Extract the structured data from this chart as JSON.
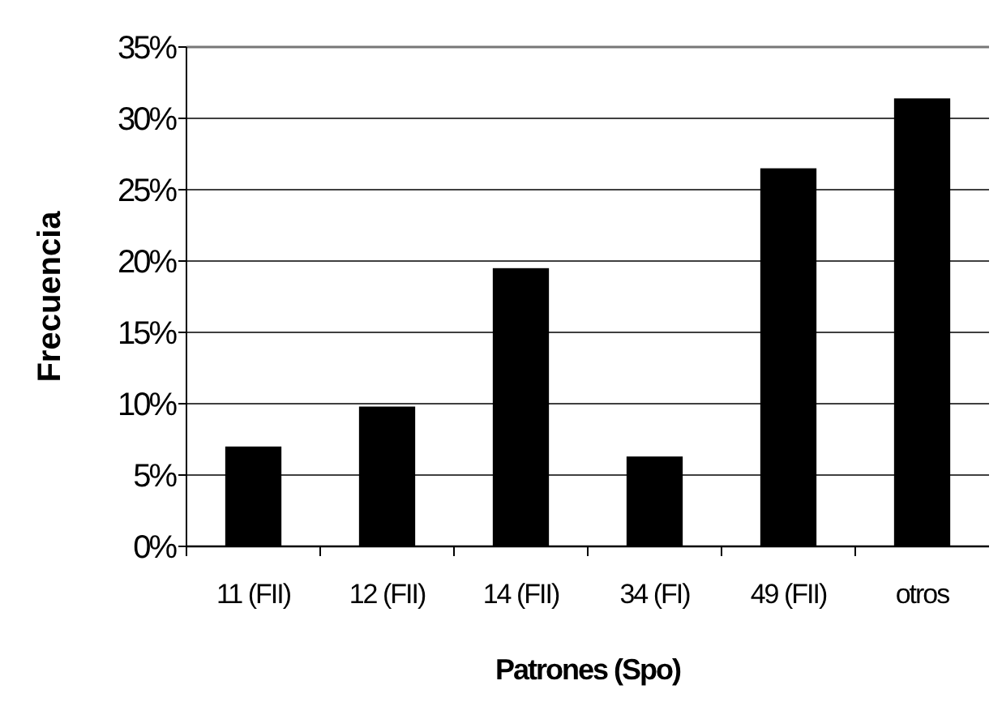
{
  "chart_data": {
    "type": "bar",
    "xlabel": "Patrones (Spo)",
    "ylabel": "Frecuencia",
    "categories": [
      "11 (FII)",
      "12 (FII)",
      "14 (FII)",
      "34 (FI)",
      "49 (FII)",
      "otros"
    ],
    "values": [
      7.0,
      9.8,
      19.5,
      6.3,
      26.5,
      31.4
    ],
    "color": "#000000",
    "ylim": [
      0,
      35
    ],
    "yticks": [
      {
        "value": 0,
        "label": "0%"
      },
      {
        "value": 5,
        "label": "5%"
      },
      {
        "value": 10,
        "label": "10%"
      },
      {
        "value": 15,
        "label": "15%"
      },
      {
        "value": 20,
        "label": "20%"
      },
      {
        "value": 25,
        "label": "25%"
      },
      {
        "value": 30,
        "label": "30%"
      },
      {
        "value": 35,
        "label": "35%"
      }
    ],
    "grid": "y"
  }
}
